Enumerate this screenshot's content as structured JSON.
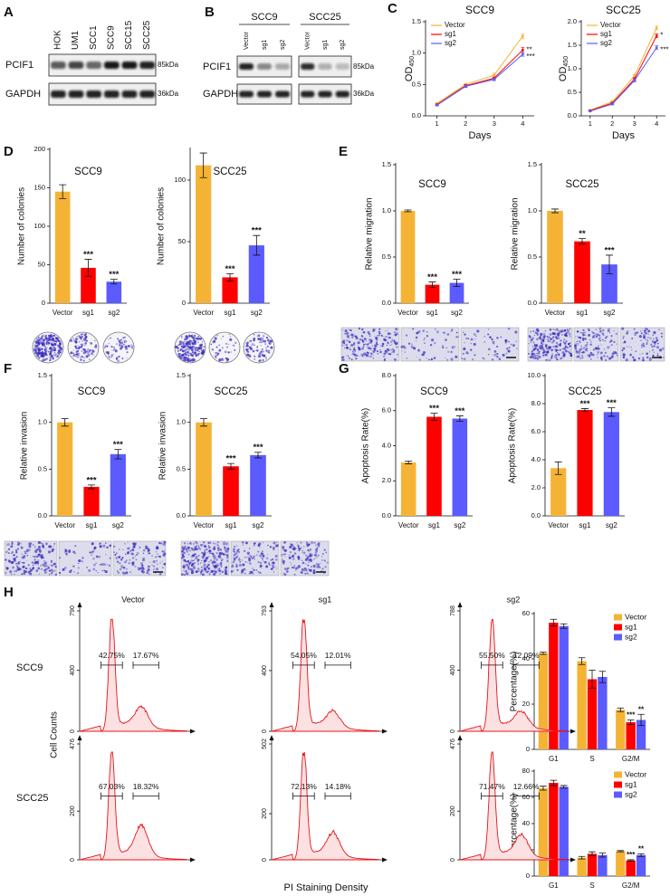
{
  "panel_labels": [
    "A",
    "B",
    "C",
    "D",
    "E",
    "F",
    "G",
    "H"
  ],
  "blot_a": {
    "lanes": [
      "HOK",
      "UM1",
      "SCC1",
      "SCC9",
      "SCC15",
      "SCC25"
    ],
    "rows": [
      "PCIF1",
      "GAPDH"
    ],
    "sizes": [
      "85kDa",
      "36kDa"
    ]
  },
  "blot_b": {
    "groups": [
      {
        "name": "SCC9",
        "lanes": [
          "Vector",
          "sg1",
          "sg2"
        ]
      },
      {
        "name": "SCC25",
        "lanes": [
          "Vector",
          "sg1",
          "sg2"
        ]
      }
    ],
    "rows": [
      "PCIF1",
      "GAPDH"
    ],
    "sizes": [
      "85kDa",
      "36kDa"
    ]
  },
  "flow_panel": {
    "columns": [
      "Vector",
      "sg1",
      "sg2"
    ],
    "rows": [
      "SCC9",
      "SCC25"
    ],
    "ylabel": "Cell Counts",
    "xlabel": "PI Staining Density"
  },
  "chart_data": [
    {
      "type": "line",
      "title": "SCC9",
      "xlabel": "Days",
      "ylabel": "OD",
      "ylabel_sub": "450",
      "x": [
        1,
        2,
        3,
        4
      ],
      "xlim": [
        0.6,
        4.4
      ],
      "xticks": [
        1,
        2,
        3,
        4
      ],
      "ylim": [
        0,
        1.5
      ],
      "yticks": [
        {
          "value": 0,
          "label": "0.0"
        },
        0.5,
        {
          "value": 1,
          "label": "1.0"
        },
        1.5
      ],
      "legend": "upper left",
      "series": [
        {
          "name": "Vector",
          "color": "#f5b335",
          "values": [
            0.2,
            0.5,
            0.65,
            1.27
          ],
          "errors": [
            0.01,
            0.02,
            0.03,
            0.04
          ]
        },
        {
          "name": "sg1",
          "color": "#ff0000",
          "values": [
            0.18,
            0.48,
            0.6,
            1.05
          ],
          "errors": [
            0.01,
            0.02,
            0.02,
            0.04
          ],
          "end_label": "**"
        },
        {
          "name": "sg2",
          "color": "#5b5bff",
          "values": [
            0.17,
            0.47,
            0.58,
            0.98
          ],
          "errors": [
            0.01,
            0.02,
            0.02,
            0.03
          ],
          "end_label": "***"
        }
      ]
    },
    {
      "type": "line",
      "title": "SCC25",
      "xlabel": "Days",
      "ylabel": "OD",
      "ylabel_sub": "450",
      "x": [
        1,
        2,
        3,
        4
      ],
      "xlim": [
        0.6,
        4.4
      ],
      "xticks": [
        1,
        2,
        3,
        4
      ],
      "ylim": [
        0,
        2
      ],
      "yticks": [
        {
          "value": 0,
          "label": "0.0"
        },
        0.5,
        {
          "value": 1,
          "label": "1.0"
        },
        1.5,
        {
          "value": 2,
          "label": "2.0"
        }
      ],
      "legend": "upper left",
      "series": [
        {
          "name": "Vector",
          "color": "#f5b335",
          "values": [
            0.12,
            0.3,
            0.85,
            1.87
          ],
          "errors": [
            0.01,
            0.02,
            0.03,
            0.04
          ]
        },
        {
          "name": "sg1",
          "color": "#ff0000",
          "values": [
            0.11,
            0.27,
            0.78,
            1.7
          ],
          "errors": [
            0.01,
            0.02,
            0.03,
            0.04
          ],
          "end_label": "*"
        },
        {
          "name": "sg2",
          "color": "#5b5bff",
          "values": [
            0.1,
            0.25,
            0.75,
            1.45
          ],
          "errors": [
            0.01,
            0.02,
            0.03,
            0.04
          ],
          "end_label": "***"
        }
      ]
    },
    {
      "type": "bar",
      "title": "SCC9",
      "ylabel": "Number of colonies",
      "categories": [
        "Vector",
        "sg1",
        "sg2"
      ],
      "values": [
        145,
        46,
        28
      ],
      "errors": [
        9,
        11,
        3
      ],
      "colors": [
        "#f5b335",
        "#ff0000",
        "#5b5bff"
      ],
      "significance": [
        null,
        "***",
        "***"
      ],
      "ylim": [
        0,
        200
      ],
      "yticks": [
        0,
        50,
        100,
        150,
        200
      ]
    },
    {
      "type": "bar",
      "title": "SCC25",
      "ylabel": "Number of colonies",
      "categories": [
        "Vector",
        "sg1",
        "sg2"
      ],
      "values": [
        112,
        21,
        47
      ],
      "errors": [
        10,
        3,
        8
      ],
      "colors": [
        "#f5b335",
        "#ff0000",
        "#5b5bff"
      ],
      "significance": [
        null,
        "***",
        "***"
      ],
      "ylim": [
        0,
        125
      ],
      "yticks": [
        0,
        50,
        100
      ]
    },
    {
      "type": "bar",
      "title": "SCC9",
      "ylabel": "Relative migration",
      "categories": [
        "Vector",
        "sg1",
        "sg2"
      ],
      "values": [
        1.0,
        0.2,
        0.22
      ],
      "errors": [
        0.01,
        0.03,
        0.04
      ],
      "colors": [
        "#f5b335",
        "#ff0000",
        "#5b5bff"
      ],
      "significance": [
        null,
        "***",
        "***"
      ],
      "ylim": [
        0,
        1.5
      ],
      "yticks": [
        {
          "value": 0,
          "label": "0.0"
        },
        0.5,
        {
          "value": 1,
          "label": "1.0"
        },
        1.5
      ]
    },
    {
      "type": "bar",
      "title": "SCC25",
      "ylabel": "Relative migration",
      "categories": [
        "Vector",
        "sg1",
        "sg2"
      ],
      "values": [
        1.0,
        0.67,
        0.42
      ],
      "errors": [
        0.02,
        0.03,
        0.1
      ],
      "colors": [
        "#f5b335",
        "#ff0000",
        "#5b5bff"
      ],
      "significance": [
        null,
        "**",
        "***"
      ],
      "ylim": [
        0,
        1.5
      ],
      "yticks": [
        {
          "value": 0,
          "label": "0.0"
        },
        0.5,
        {
          "value": 1,
          "label": "1.0"
        },
        1.5
      ]
    },
    {
      "type": "bar",
      "title": "SCC9",
      "ylabel": "Relative invasion",
      "categories": [
        "Vector",
        "sg1",
        "sg2"
      ],
      "values": [
        1.0,
        0.31,
        0.66
      ],
      "errors": [
        0.04,
        0.02,
        0.05
      ],
      "colors": [
        "#f5b335",
        "#ff0000",
        "#5b5bff"
      ],
      "significance": [
        null,
        "***",
        "***"
      ],
      "ylim": [
        0,
        1.5
      ],
      "yticks": [
        {
          "value": 0,
          "label": "0.0"
        },
        0.5,
        {
          "value": 1,
          "label": "1.0"
        },
        1.5
      ]
    },
    {
      "type": "bar",
      "title": "SCC25",
      "ylabel": "Relative invasion",
      "categories": [
        "Vector",
        "sg1",
        "sg2"
      ],
      "values": [
        1.0,
        0.53,
        0.65
      ],
      "errors": [
        0.04,
        0.03,
        0.03
      ],
      "colors": [
        "#f5b335",
        "#ff0000",
        "#5b5bff"
      ],
      "significance": [
        null,
        "***",
        "***"
      ],
      "ylim": [
        0,
        1.5
      ],
      "yticks": [
        {
          "value": 0,
          "label": "0.0"
        },
        0.5,
        {
          "value": 1,
          "label": "1.0"
        },
        1.5
      ]
    },
    {
      "type": "bar",
      "title": "SCC9",
      "ylabel": "Apoptosis Rate(%)",
      "categories": [
        "Vector",
        "sg1",
        "sg2"
      ],
      "values": [
        3.05,
        5.65,
        5.55
      ],
      "errors": [
        0.08,
        0.2,
        0.15
      ],
      "colors": [
        "#f5b335",
        "#ff0000",
        "#5b5bff"
      ],
      "significance": [
        null,
        "***",
        "***"
      ],
      "ylim": [
        0,
        8
      ],
      "yticks": [
        {
          "value": 0,
          "label": "0.0"
        },
        {
          "value": 2,
          "label": "2.0"
        },
        {
          "value": 4,
          "label": "4.0"
        },
        {
          "value": 6,
          "label": "6.0"
        },
        {
          "value": 8,
          "label": "8.0"
        }
      ]
    },
    {
      "type": "bar",
      "title": "SCC25",
      "ylabel": "Apoptosis Rate(%)",
      "categories": [
        "Vector",
        "sg1",
        "sg2"
      ],
      "values": [
        3.4,
        7.55,
        7.4
      ],
      "errors": [
        0.45,
        0.1,
        0.3
      ],
      "colors": [
        "#f5b335",
        "#ff0000",
        "#5b5bff"
      ],
      "significance": [
        null,
        "***",
        "***"
      ],
      "ylim": [
        0,
        10
      ],
      "yticks": [
        {
          "value": 0,
          "label": "0.0"
        },
        {
          "value": 2,
          "label": "2.0"
        },
        {
          "value": 4,
          "label": "4.0"
        },
        {
          "value": 6,
          "label": "6.0"
        },
        {
          "value": 8,
          "label": "8.0"
        },
        {
          "value": 10,
          "label": "10.0"
        }
      ]
    },
    {
      "type": "bar",
      "ylabel": "Percentage(%)",
      "categories": [
        "G1",
        "S",
        "G2/M"
      ],
      "ylim": [
        0,
        60
      ],
      "yticks": [
        0,
        20,
        40,
        60
      ],
      "legend": "upper right",
      "series": [
        {
          "name": "Vector",
          "color": "#f5b335",
          "values": [
            42.5,
            39,
            17.5
          ],
          "errors": [
            0.5,
            1.5,
            0.8
          ]
        },
        {
          "name": "sg1",
          "color": "#ff0000",
          "values": [
            56,
            31,
            12
          ],
          "errors": [
            1.5,
            4,
            1
          ],
          "significance": [
            null,
            null,
            "***"
          ]
        },
        {
          "name": "sg2",
          "color": "#5b5bff",
          "values": [
            54.5,
            32,
            13
          ],
          "errors": [
            1,
            2.5,
            2.5
          ],
          "significance": [
            null,
            null,
            "**"
          ]
        }
      ]
    },
    {
      "type": "bar",
      "ylabel": "Percentage(%)",
      "categories": [
        "G1",
        "S",
        "G2/M"
      ],
      "ylim": [
        0,
        80
      ],
      "yticks": [
        0,
        20,
        40,
        60,
        80
      ],
      "legend": "upper right",
      "series": [
        {
          "name": "Vector",
          "color": "#f5b335",
          "values": [
            67,
            14,
            19
          ],
          "errors": [
            1.5,
            1,
            0.5
          ]
        },
        {
          "name": "sg1",
          "color": "#ff0000",
          "values": [
            71,
            17,
            12
          ],
          "errors": [
            2,
            1.5,
            0.5
          ],
          "significance": [
            null,
            null,
            "***"
          ]
        },
        {
          "name": "sg2",
          "color": "#5b5bff",
          "values": [
            68,
            16,
            16
          ],
          "errors": [
            1,
            1.5,
            1
          ],
          "significance": [
            null,
            null,
            "**"
          ]
        }
      ]
    },
    {
      "type": "flow",
      "ylim": [
        0,
        790
      ],
      "yticks": [
        0,
        400,
        790
      ],
      "gates": [
        "42.75%",
        "17.67%"
      ]
    },
    {
      "type": "flow",
      "ylim": [
        0,
        793
      ],
      "yticks": [
        0,
        400,
        793
      ],
      "gates": [
        "54.05%",
        "12.01%"
      ]
    },
    {
      "type": "flow",
      "ylim": [
        0,
        788
      ],
      "yticks": [
        0,
        400,
        788
      ],
      "gates": [
        "55.50%",
        "12.09%"
      ]
    },
    {
      "type": "flow",
      "ylim": [
        0,
        476
      ],
      "yticks": [
        0,
        200,
        476
      ],
      "gates": [
        "67.03%",
        "18.32%"
      ]
    },
    {
      "type": "flow",
      "ylim": [
        0,
        502
      ],
      "yticks": [
        0,
        200,
        502
      ],
      "gates": [
        "72.13%",
        "14.18%"
      ]
    },
    {
      "type": "flow",
      "ylim": [
        0,
        476
      ],
      "yticks": [
        0,
        200,
        476
      ],
      "gates": [
        "71.47%",
        "12.66%"
      ]
    }
  ]
}
